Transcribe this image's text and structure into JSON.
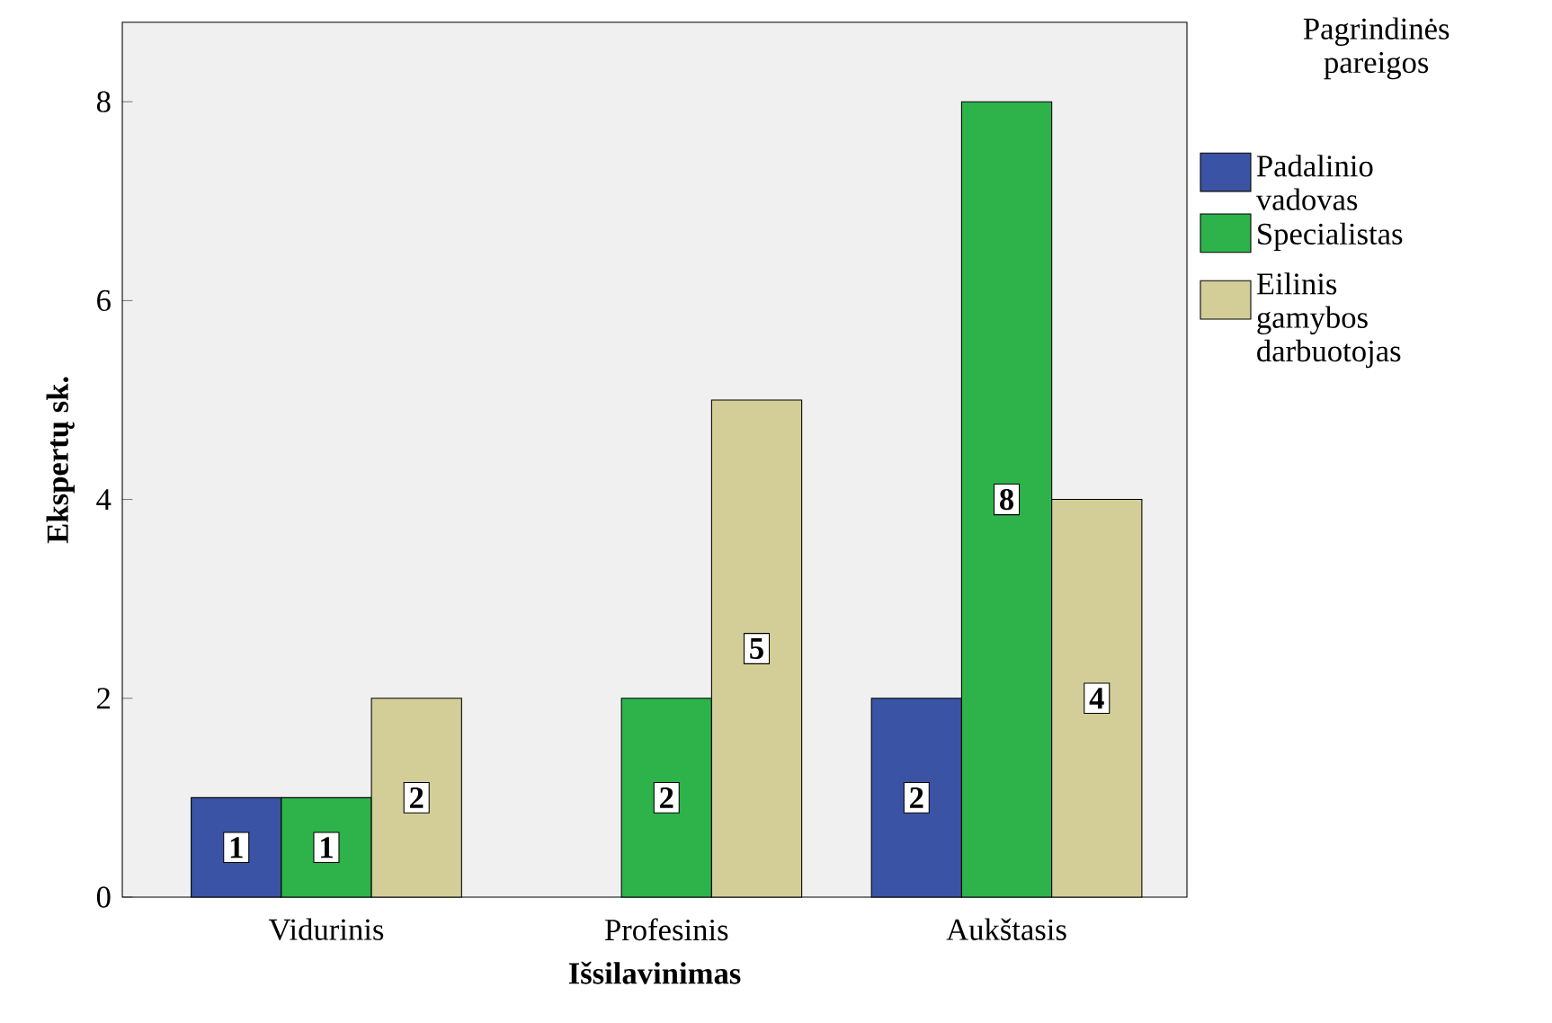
{
  "chart_data": {
    "type": "bar",
    "xlabel": "Išsilavinimas",
    "ylabel": "Ekspertų sk.",
    "legend_title": "Pagrindinės pareigos",
    "categories": [
      "Vidurinis",
      "Profesinis",
      "Aukštasis"
    ],
    "series": [
      {
        "name": "Padalinio vadovas",
        "color": "#3a53a4",
        "values": [
          1,
          null,
          2
        ]
      },
      {
        "name": "Specialistas",
        "color": "#2db34a",
        "values": [
          1,
          2,
          8
        ]
      },
      {
        "name": "Eilinis gamybos darbuotojas",
        "color": "#d3ce97",
        "values": [
          2,
          5,
          4
        ]
      }
    ],
    "ylim": [
      0,
      8.8
    ],
    "yticks": [
      0,
      2,
      4,
      6,
      8
    ],
    "data_labels": true,
    "legend": "right",
    "grid": false
  }
}
